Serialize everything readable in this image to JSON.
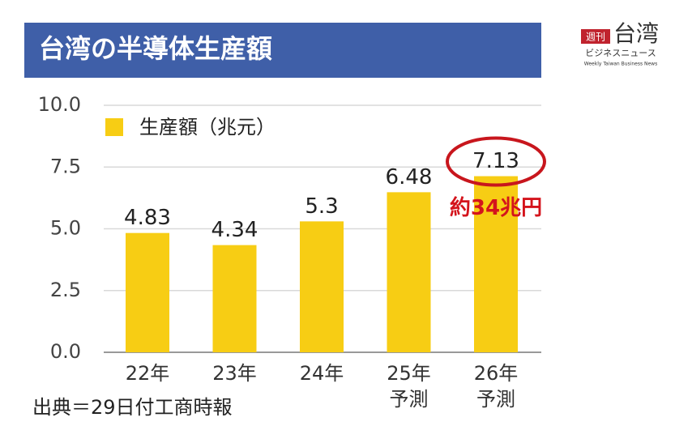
{
  "chart_data": {
    "type": "bar",
    "title": "台湾の半導体生産額",
    "brand": {
      "badge": "週刊",
      "name": "台湾",
      "kana": "ビジネスニュース",
      "english": "Weekly Taiwan Business News"
    },
    "categories": [
      [
        "22年"
      ],
      [
        "23年"
      ],
      [
        "24年"
      ],
      [
        "25年",
        "予測"
      ],
      [
        "26年",
        "予測"
      ]
    ],
    "series": [
      {
        "name": "生産額（兆元）",
        "color": "#f7cd14",
        "values": [
          4.83,
          4.34,
          5.3,
          6.48,
          7.13
        ]
      }
    ],
    "ylim": [
      0,
      10
    ],
    "yticks": [
      {
        "value": 0,
        "label": "0.0"
      },
      {
        "value": 2.5,
        "label": "2.5"
      },
      {
        "value": 5,
        "label": "5.0"
      },
      {
        "value": 7.5,
        "label": "7.5"
      },
      {
        "value": 10,
        "label": "10.0"
      }
    ],
    "grid": true,
    "legend": "top-left",
    "annotation": "約34兆円",
    "source": "出典＝29日付工商時報"
  }
}
